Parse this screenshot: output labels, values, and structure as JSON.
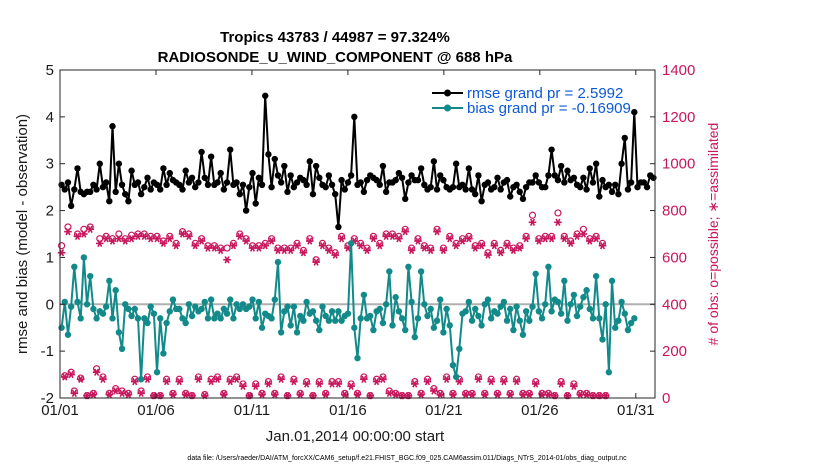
{
  "chart_data": {
    "type": "line",
    "title_line1": "Tropics 43783 / 44987 = 97.324%",
    "title_line2": "RADIOSONDE_U_WIND_COMPONENT @ 688 hPa",
    "xlabel": "Jan.01,2014 00:00:00 start",
    "ylabel_left": "rmse and bias (model - observation)",
    "ylabel_right": "# of obs: o=possible; ∗=assimilated",
    "footnote": "data file: /Users/raeder/DAI/ATM_forcXX/CAM6_setup/f.e21.FHIST_BGC.f09_025.CAM6assim.011/Diags_NTrS_2014-01/obs_diag_output.nc",
    "x_tick_labels": [
      "01/01",
      "01/06",
      "01/11",
      "01/16",
      "01/21",
      "01/26",
      "01/31"
    ],
    "x_tick_days": [
      1,
      6,
      11,
      16,
      21,
      26,
      31
    ],
    "xlim_days": [
      1,
      32
    ],
    "left_axis": {
      "ylim": [
        -2,
        5
      ],
      "ticks": [
        -2,
        -1,
        0,
        1,
        2,
        3,
        4,
        5
      ],
      "tick_labels": [
        "-2",
        "-1",
        "0",
        "1",
        "2",
        "3",
        "4",
        "5"
      ]
    },
    "right_axis": {
      "ylim": [
        0,
        1400
      ],
      "ticks": [
        0,
        200,
        400,
        600,
        800,
        1000,
        1200,
        1400
      ],
      "tick_labels": [
        "0",
        "200",
        "400",
        "600",
        "800",
        "1000",
        "1200",
        "1400"
      ]
    },
    "zero_line": 0,
    "legend": [
      {
        "label": "rmse grand pr = 2.5992",
        "series": "rmse"
      },
      {
        "label": "bias grand pr = -0.16909",
        "series": "bias"
      }
    ],
    "colors": {
      "rmse": "#000000",
      "bias": "#138a8a",
      "obs": "#c8175d",
      "legend_text": "#0b59d8",
      "zero_line": "#b0b0b0"
    },
    "series": [
      {
        "name": "rmse",
        "values": [
          2.55,
          2.45,
          2.6,
          2.1,
          2.45,
          2.9,
          2.4,
          2.35,
          2.4,
          2.4,
          2.55,
          2.45,
          3.0,
          2.5,
          2.6,
          2.2,
          3.8,
          2.4,
          3.0,
          2.55,
          2.35,
          2.2,
          2.85,
          2.55,
          2.6,
          2.35,
          2.5,
          2.7,
          2.45,
          2.6,
          2.55,
          2.45,
          2.9,
          2.55,
          2.8,
          2.65,
          2.6,
          2.55,
          2.45,
          2.85,
          2.6,
          2.7,
          2.5,
          2.6,
          3.25,
          2.7,
          2.55,
          3.15,
          2.55,
          2.6,
          2.8,
          2.45,
          2.6,
          3.3,
          2.55,
          2.6,
          2.35,
          2.55,
          2.0,
          2.5,
          2.8,
          2.15,
          2.7,
          2.55,
          4.45,
          3.2,
          2.5,
          3.1,
          2.75,
          2.6,
          2.95,
          2.4,
          2.75,
          2.5,
          2.6,
          2.7,
          2.65,
          2.55,
          3.05,
          2.35,
          2.95,
          2.7,
          2.55,
          2.5,
          2.75,
          2.55,
          2.35,
          1.65,
          2.65,
          2.45,
          2.6,
          2.75,
          4.0,
          2.55,
          2.6,
          2.4,
          2.65,
          2.75,
          2.7,
          2.65,
          2.55,
          2.95,
          2.4,
          2.6,
          2.6,
          2.65,
          2.8,
          2.7,
          2.25,
          2.6,
          2.75,
          2.65,
          2.65,
          2.9,
          2.55,
          2.45,
          2.5,
          3.05,
          2.45,
          2.75,
          2.65,
          2.5,
          2.45,
          2.5,
          3.0,
          2.5,
          2.55,
          2.45,
          2.9,
          2.45,
          2.35,
          2.75,
          2.2,
          2.55,
          2.6,
          2.45,
          2.5,
          2.7,
          2.45,
          2.6,
          2.65,
          2.3,
          2.5,
          2.55,
          2.4,
          2.25,
          2.5,
          2.6,
          2.6,
          2.75,
          2.6,
          2.5,
          2.5,
          2.75,
          3.3,
          2.75,
          2.65,
          2.95,
          2.6,
          2.85,
          2.65,
          2.7,
          2.55,
          2.5,
          2.7,
          2.45,
          2.9,
          2.6,
          3.0,
          2.3,
          2.65,
          2.5,
          2.55,
          2.4,
          2.55,
          2.35,
          3.0,
          3.55,
          2.45,
          2.6,
          4.1,
          2.5,
          2.6,
          2.6,
          2.5,
          2.75,
          2.7
        ]
      },
      {
        "name": "bias",
        "values": [
          -0.5,
          0.05,
          -0.65,
          -0.05,
          0.8,
          0.05,
          -0.3,
          1.0,
          0.0,
          0.6,
          -0.1,
          -0.3,
          -0.15,
          -0.2,
          -0.05,
          0.5,
          -0.3,
          0.3,
          -0.6,
          -0.95,
          0.0,
          -0.1,
          -0.25,
          -0.1,
          -0.3,
          -1.6,
          -0.3,
          -0.4,
          -0.05,
          -0.2,
          -1.45,
          -0.3,
          -1.05,
          -0.4,
          -0.15,
          0.1,
          -0.1,
          -0.1,
          -0.3,
          -0.4,
          0.0,
          -0.25,
          -0.05,
          -0.15,
          -0.1,
          0.05,
          -0.3,
          0.1,
          -0.3,
          -0.2,
          -0.3,
          -0.1,
          -0.2,
          0.1,
          -0.3,
          0.0,
          -0.1,
          0.0,
          -0.1,
          -0.05,
          0.1,
          -0.3,
          0.05,
          -0.5,
          -0.2,
          -0.25,
          -0.3,
          0.1,
          0.9,
          -0.6,
          -0.15,
          -0.05,
          -0.45,
          -0.05,
          -0.6,
          -0.25,
          -0.35,
          0.05,
          -0.2,
          -0.15,
          -0.35,
          -0.55,
          -0.05,
          -0.25,
          -0.35,
          -0.15,
          -0.35,
          -0.15,
          -0.35,
          -0.25,
          -0.2,
          1.3,
          -0.5,
          -1.15,
          -0.3,
          0.2,
          -0.3,
          -0.25,
          -0.55,
          -0.15,
          -0.1,
          -0.4,
          0.0,
          0.7,
          -0.45,
          0.15,
          -0.15,
          -0.3,
          -0.55,
          0.8,
          0.05,
          -0.7,
          -0.3,
          0.7,
          0.0,
          -0.25,
          -0.1,
          -0.5,
          -0.35,
          0.1,
          -0.6,
          -0.1,
          -0.45,
          -1.3,
          -1.55,
          -0.95,
          -0.2,
          -0.15,
          0.05,
          -0.35,
          -0.1,
          -0.25,
          -0.45,
          0.0,
          0.1,
          -0.3,
          -0.15,
          -0.2,
          -0.05,
          0.05,
          -0.35,
          -0.1,
          -0.55,
          -0.05,
          -0.35,
          -0.65,
          -0.15,
          -0.35,
          -0.05,
          0.65,
          -0.15,
          -0.3,
          0.0,
          0.8,
          -0.15,
          0.1,
          0.05,
          -0.2,
          0.5,
          -0.35,
          0.0,
          0.2,
          -0.25,
          -0.05,
          0.15,
          0.3,
          -0.1,
          -0.3,
          0.6,
          -0.3,
          -0.75,
          0.0,
          -1.45,
          0.5,
          -0.5,
          -0.35,
          0.05,
          -0.2,
          -0.55,
          -0.4,
          -0.3
        ]
      },
      {
        "name": "possible",
        "values": [
          650,
          95,
          730,
          110,
          30,
          700,
          85,
          720,
          10,
          730,
          20,
          125,
          680,
          90,
          690,
          20,
          680,
          40,
          700,
          30,
          680,
          20,
          695,
          80,
          700,
          30,
          700,
          90,
          690,
          10,
          690,
          10,
          670,
          80,
          690,
          20,
          660,
          80,
          710,
          20,
          700,
          10,
          660,
          90,
          680,
          15,
          650,
          80,
          650,
          90,
          640,
          20,
          640,
          80,
          660,
          90,
          700,
          60,
          680,
          10,
          650,
          60,
          650,
          20,
          660,
          70,
          680,
          20,
          640,
          90,
          640,
          10,
          640,
          80,
          660,
          20,
          630,
          70,
          680,
          10,
          590,
          70,
          660,
          20,
          640,
          70,
          620,
          70,
          690,
          20,
          650,
          60,
          680,
          20,
          660,
          90,
          640,
          10,
          690,
          80,
          660,
          90,
          700,
          30,
          700,
          20,
          690,
          10,
          720,
          10,
          640,
          70,
          680,
          20,
          650,
          80,
          640,
          40,
          720,
          20,
          640,
          90,
          690,
          20,
          660,
          80,
          680,
          20,
          690,
          20,
          650,
          90,
          660,
          20,
          620,
          80,
          660,
          20,
          630,
          80,
          660,
          20,
          640,
          80,
          650,
          20,
          690,
          20,
          780,
          70,
          680,
          20,
          690,
          20,
          690,
          10,
          790,
          70,
          690,
          10,
          670,
          60,
          700,
          20,
          720,
          20,
          680,
          10,
          690,
          10,
          660,
          10
        ]
      },
      {
        "name": "assimilated",
        "values": [
          620,
          90,
          710,
          100,
          20,
          690,
          80,
          700,
          10,
          720,
          15,
          110,
          660,
          80,
          680,
          15,
          670,
          30,
          680,
          20,
          670,
          15,
          680,
          70,
          690,
          20,
          690,
          80,
          680,
          10,
          680,
          10,
          660,
          70,
          680,
          15,
          650,
          70,
          700,
          15,
          690,
          10,
          650,
          80,
          670,
          10,
          640,
          70,
          640,
          80,
          630,
          15,
          590,
          70,
          650,
          80,
          690,
          50,
          670,
          10,
          640,
          50,
          640,
          15,
          650,
          60,
          670,
          15,
          630,
          80,
          630,
          10,
          630,
          70,
          650,
          15,
          620,
          60,
          670,
          10,
          580,
          60,
          650,
          15,
          630,
          60,
          610,
          60,
          680,
          15,
          640,
          50,
          670,
          15,
          650,
          80,
          630,
          10,
          680,
          70,
          650,
          80,
          690,
          20,
          690,
          15,
          680,
          10,
          710,
          10,
          630,
          60,
          670,
          15,
          640,
          70,
          630,
          30,
          710,
          15,
          630,
          80,
          680,
          15,
          650,
          70,
          670,
          15,
          680,
          15,
          640,
          80,
          650,
          15,
          610,
          70,
          650,
          15,
          620,
          70,
          650,
          15,
          630,
          70,
          640,
          15,
          680,
          15,
          750,
          60,
          670,
          15,
          680,
          15,
          680,
          10,
          750,
          60,
          680,
          10,
          660,
          50,
          690,
          15,
          700,
          15,
          670,
          10,
          680,
          10,
          650,
          10
        ]
      }
    ]
  }
}
